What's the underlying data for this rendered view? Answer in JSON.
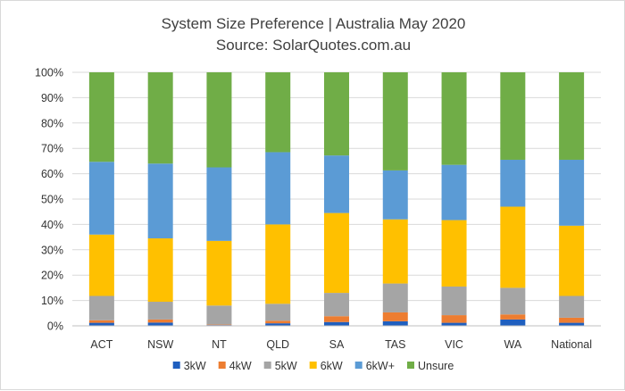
{
  "chart_data": {
    "type": "bar",
    "stacked": true,
    "title": "System Size Preference  | Australia May 2020",
    "subtitle": "Source: SolarQuotes.com.au",
    "xlabel": "",
    "ylabel": "",
    "ylim": [
      0,
      100
    ],
    "y_ticks": [
      "0%",
      "10%",
      "20%",
      "30%",
      "40%",
      "50%",
      "60%",
      "70%",
      "80%",
      "90%",
      "100%"
    ],
    "grid": true,
    "legend_position": "bottom",
    "categories": [
      "ACT",
      "NSW",
      "NT",
      "QLD",
      "SA",
      "TAS",
      "VIC",
      "WA",
      "National"
    ],
    "series": [
      {
        "name": "3kW",
        "color": "#1f5fbf",
        "values": [
          1.2,
          1.3,
          0.3,
          1.0,
          1.5,
          1.8,
          1.2,
          2.5,
          1.2
        ]
      },
      {
        "name": "4kW",
        "color": "#ed7d31",
        "values": [
          1.0,
          1.2,
          0.2,
          1.0,
          2.3,
          3.5,
          3.0,
          2.0,
          2.0
        ]
      },
      {
        "name": "5kW",
        "color": "#a5a5a5",
        "values": [
          9.6,
          7.0,
          7.5,
          6.7,
          9.2,
          11.4,
          11.3,
          10.5,
          8.6
        ]
      },
      {
        "name": "6kW",
        "color": "#ffc000",
        "values": [
          24.2,
          25.0,
          25.5,
          31.3,
          31.5,
          25.3,
          26.2,
          32.0,
          27.7
        ]
      },
      {
        "name": "6kW+",
        "color": "#5b9bd5",
        "values": [
          28.7,
          29.5,
          29.0,
          28.5,
          22.7,
          19.3,
          21.8,
          18.5,
          26.0
        ]
      },
      {
        "name": "Unsure",
        "color": "#70ad47",
        "values": [
          35.3,
          36.0,
          37.5,
          31.5,
          32.8,
          38.7,
          36.5,
          34.5,
          34.5
        ]
      }
    ]
  }
}
